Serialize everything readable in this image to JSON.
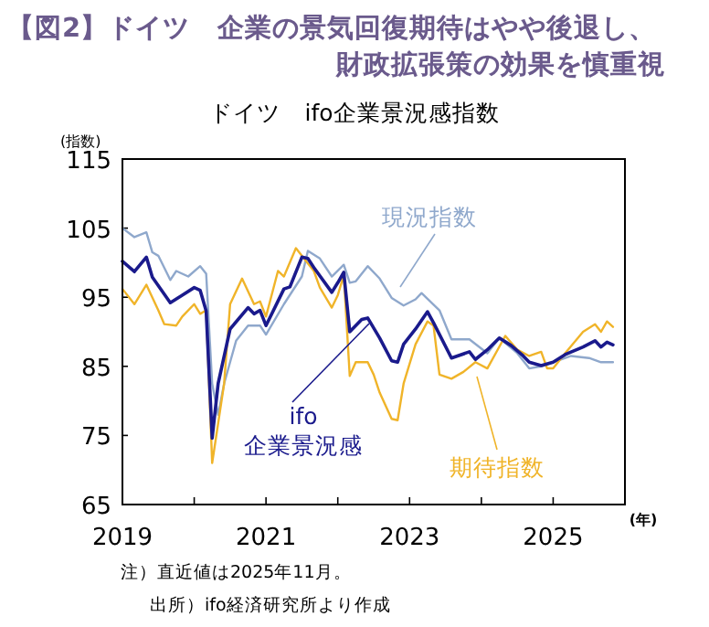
{
  "chart_data": {
    "type": "line",
    "title": "【図2】ドイツ　企業の景気回復期待はやや後退し、財政拡張策の効果を慎重視",
    "subtitle": "ドイツ　ifo企業景況感指数",
    "ylabel": "(指数)",
    "xlabel": "(年)",
    "xlim": [
      "2019-01",
      "2026-01"
    ],
    "xticks": [
      {
        "value": "2019-01",
        "label": "2019"
      },
      {
        "value": "2020-01",
        "label": null
      },
      {
        "value": "2021-01",
        "label": "2021"
      },
      {
        "value": "2022-01",
        "label": null
      },
      {
        "value": "2023-01",
        "label": "2023"
      },
      {
        "value": "2024-01",
        "label": null
      },
      {
        "value": "2025-01",
        "label": "2025"
      },
      {
        "value": "2026-01",
        "label": null
      }
    ],
    "ylim": [
      65,
      115
    ],
    "yticks": [
      65,
      75,
      85,
      95,
      105,
      115
    ],
    "grid": false,
    "legend": false,
    "marker": "none",
    "line_style": "solid",
    "series": [
      {
        "name": "現況指数",
        "color": "#8fa8cc",
        "x": [
          "2019-01",
          "2019-03",
          "2019-05",
          "2019-06",
          "2019-07",
          "2019-09",
          "2019-10",
          "2019-12",
          "2020-02",
          "2020-03",
          "2020-04",
          "2020-05",
          "2020-06",
          "2020-08",
          "2020-10",
          "2020-12",
          "2021-01",
          "2021-04",
          "2021-07",
          "2021-08",
          "2021-10",
          "2021-12",
          "2022-02",
          "2022-03",
          "2022-04",
          "2022-06",
          "2022-08",
          "2022-10",
          "2022-12",
          "2023-02",
          "2023-03",
          "2023-06",
          "2023-08",
          "2023-11",
          "2024-02",
          "2024-04",
          "2024-07",
          "2024-09",
          "2024-11",
          "2025-01",
          "2025-04",
          "2025-07",
          "2025-09",
          "2025-11"
        ],
        "values": [
          105.0,
          103.7,
          104.4,
          101.5,
          101.0,
          97.5,
          98.8,
          98.0,
          99.5,
          98.4,
          82.5,
          78.0,
          82.5,
          88.7,
          90.9,
          90.9,
          89.6,
          94.0,
          98.0,
          101.7,
          100.6,
          98.0,
          99.7,
          97.1,
          97.3,
          99.5,
          97.7,
          94.9,
          93.8,
          94.7,
          95.6,
          93.1,
          88.9,
          88.9,
          86.9,
          89.1,
          86.9,
          84.7,
          85.0,
          85.6,
          86.5,
          86.2,
          85.6,
          85.6
        ]
      },
      {
        "name": "ifo 企業景況感",
        "color": "#1a1a8c",
        "x": [
          "2019-01",
          "2019-03",
          "2019-05",
          "2019-06",
          "2019-09",
          "2019-11",
          "2020-01",
          "2020-02",
          "2020-03",
          "2020-04",
          "2020-05",
          "2020-07",
          "2020-10",
          "2020-11",
          "2020-12",
          "2021-01",
          "2021-04",
          "2021-05",
          "2021-07",
          "2021-08",
          "2021-09",
          "2021-12",
          "2022-01",
          "2022-02",
          "2022-03",
          "2022-05",
          "2022-06",
          "2022-08",
          "2022-10",
          "2022-11",
          "2022-12",
          "2023-02",
          "2023-04",
          "2023-05",
          "2023-08",
          "2023-11",
          "2023-12",
          "2024-02",
          "2024-04",
          "2024-06",
          "2024-08",
          "2024-09",
          "2024-11",
          "2025-01",
          "2025-03",
          "2025-06",
          "2025-08",
          "2025-09",
          "2025-10",
          "2025-11"
        ],
        "values": [
          100.2,
          98.7,
          100.8,
          97.9,
          94.2,
          95.3,
          96.4,
          96.0,
          93.0,
          74.6,
          82.5,
          90.4,
          93.5,
          92.6,
          93.1,
          90.9,
          96.2,
          96.5,
          100.8,
          100.6,
          99.3,
          95.7,
          97.1,
          98.6,
          90.0,
          91.8,
          92.0,
          89.1,
          85.8,
          85.6,
          88.2,
          90.4,
          92.9,
          91.3,
          86.2,
          87.1,
          86.0,
          87.4,
          89.1,
          88.0,
          86.5,
          85.6,
          85.1,
          85.6,
          86.7,
          87.8,
          88.7,
          87.8,
          88.5,
          88.1
        ]
      },
      {
        "name": "期待指数",
        "color": "#f0b429",
        "x": [
          "2019-01",
          "2019-03",
          "2019-05",
          "2019-07",
          "2019-08",
          "2019-10",
          "2019-11",
          "2020-01",
          "2020-02",
          "2020-03",
          "2020-04",
          "2020-06",
          "2020-07",
          "2020-09",
          "2020-11",
          "2020-12",
          "2021-01",
          "2021-03",
          "2021-04",
          "2021-06",
          "2021-09",
          "2021-10",
          "2021-12",
          "2022-01",
          "2022-02",
          "2022-03",
          "2022-04",
          "2022-06",
          "2022-07",
          "2022-08",
          "2022-10",
          "2022-11",
          "2022-12",
          "2023-02",
          "2023-04",
          "2023-05",
          "2023-06",
          "2023-08",
          "2023-10",
          "2023-12",
          "2024-02",
          "2024-05",
          "2024-07",
          "2024-09",
          "2024-11",
          "2024-12",
          "2025-01",
          "2025-03",
          "2025-06",
          "2025-08",
          "2025-09",
          "2025-10",
          "2025-11"
        ],
        "values": [
          96.2,
          94.0,
          96.8,
          93.1,
          91.1,
          90.9,
          92.2,
          94.0,
          92.6,
          93.1,
          71.0,
          82.5,
          94.0,
          97.7,
          94.0,
          94.4,
          92.2,
          98.8,
          98.0,
          102.1,
          98.8,
          96.4,
          93.5,
          95.3,
          98.2,
          83.6,
          85.6,
          85.6,
          83.8,
          81.2,
          77.4,
          77.2,
          82.5,
          88.2,
          91.5,
          90.9,
          83.8,
          83.2,
          84.2,
          85.6,
          84.7,
          89.4,
          87.4,
          86.5,
          87.1,
          84.7,
          84.7,
          86.9,
          90.0,
          91.1,
          90.0,
          91.5,
          90.7
        ]
      }
    ],
    "annotations": [
      "注）直近値は2025年11月。",
      "出所）ifo経済研究所より作成"
    ]
  }
}
